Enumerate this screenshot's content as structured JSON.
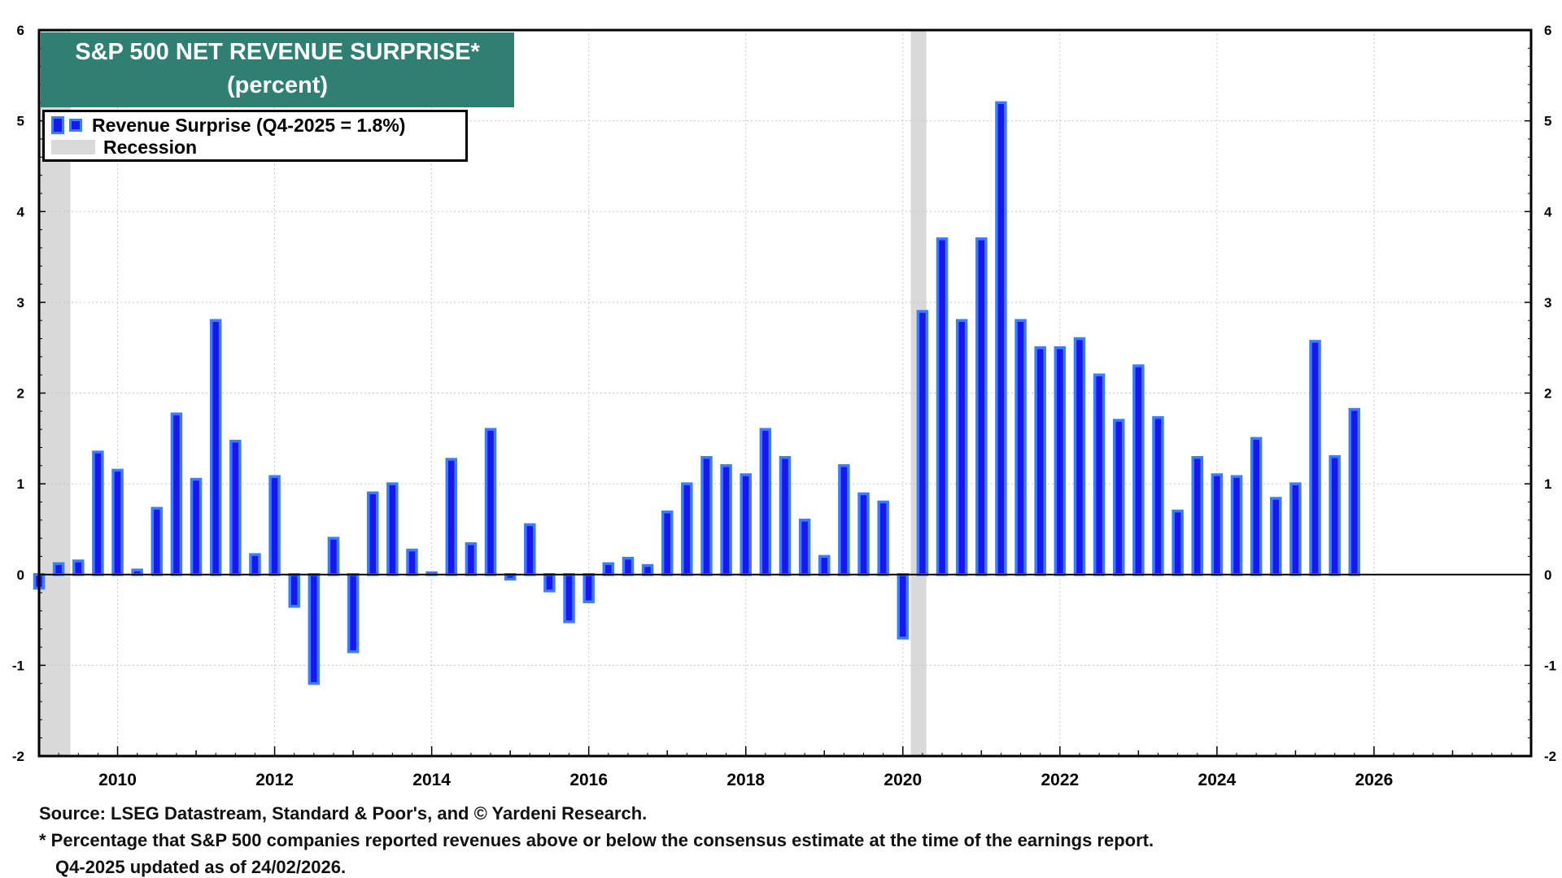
{
  "chart_data": {
    "type": "bar",
    "title": "S&P 500 NET REVENUE SURPRISE*",
    "subtitle": "(percent)",
    "legend": {
      "series_label": "Revenue Surprise (Q4-2025 = 1.8%)",
      "recession_label": "Recession"
    },
    "x_tick_labels": [
      "2010",
      "2012",
      "2014",
      "2016",
      "2018",
      "2020",
      "2022",
      "2024",
      "2026"
    ],
    "y_tick_labels": [
      "-2",
      "-1",
      "0",
      "1",
      "2",
      "3",
      "4",
      "5",
      "6"
    ],
    "ylim": [
      -2,
      6
    ],
    "xlim": [
      2009.0,
      2028.0
    ],
    "grid": true,
    "recessions": [
      [
        2009.0,
        2009.4
      ],
      [
        2020.1,
        2020.3
      ]
    ],
    "series": [
      {
        "name": "Revenue Surprise",
        "x": [
          2009.0,
          2009.25,
          2009.5,
          2009.75,
          2010.0,
          2010.25,
          2010.5,
          2010.75,
          2011.0,
          2011.25,
          2011.5,
          2011.75,
          2012.0,
          2012.25,
          2012.5,
          2012.75,
          2013.0,
          2013.25,
          2013.5,
          2013.75,
          2014.0,
          2014.25,
          2014.5,
          2014.75,
          2015.0,
          2015.25,
          2015.5,
          2015.75,
          2016.0,
          2016.25,
          2016.5,
          2016.75,
          2017.0,
          2017.25,
          2017.5,
          2017.75,
          2018.0,
          2018.25,
          2018.5,
          2018.75,
          2019.0,
          2019.25,
          2019.5,
          2019.75,
          2020.0,
          2020.25,
          2020.5,
          2020.75,
          2021.0,
          2021.25,
          2021.5,
          2021.75,
          2022.0,
          2022.25,
          2022.5,
          2022.75,
          2023.0,
          2023.25,
          2023.5,
          2023.75,
          2024.0,
          2024.25,
          2024.5,
          2024.75,
          2025.0,
          2025.25,
          2025.5,
          2025.75
        ],
        "values": [
          -0.15,
          0.12,
          0.15,
          1.35,
          1.15,
          0.05,
          0.73,
          1.77,
          1.05,
          2.8,
          1.47,
          0.22,
          1.08,
          -0.35,
          -1.2,
          0.4,
          -0.85,
          0.9,
          1.0,
          0.27,
          0.02,
          1.27,
          0.34,
          1.6,
          -0.05,
          0.55,
          -0.18,
          -0.52,
          -0.3,
          0.12,
          0.18,
          0.1,
          0.69,
          1.0,
          1.29,
          1.2,
          1.1,
          1.6,
          1.29,
          0.6,
          0.2,
          1.2,
          0.89,
          0.8,
          -0.7,
          2.9,
          3.7,
          2.8,
          3.7,
          5.2,
          2.8,
          2.5,
          2.5,
          2.6,
          2.2,
          1.7,
          2.3,
          1.73,
          0.7,
          1.29,
          1.1,
          1.08,
          1.5,
          0.84,
          1.0,
          2.57,
          1.3,
          1.82
        ]
      }
    ]
  },
  "footnotes": {
    "source": "Source: LSEG Datastream, Standard & Poor's, and © Yardeni Research.",
    "definition": "* Percentage that S&P 500 companies reported revenues above or below the consensus estimate at the time of the earnings report.",
    "updated": "Q4-2025 updated as of 24/02/2026."
  },
  "colors": {
    "bar_fill": "#1717f0",
    "bar_outline": "#3d7bff",
    "title_bg": "#2f7f73",
    "recession": "#d9d9d9",
    "grid": "#c8c8c8"
  }
}
